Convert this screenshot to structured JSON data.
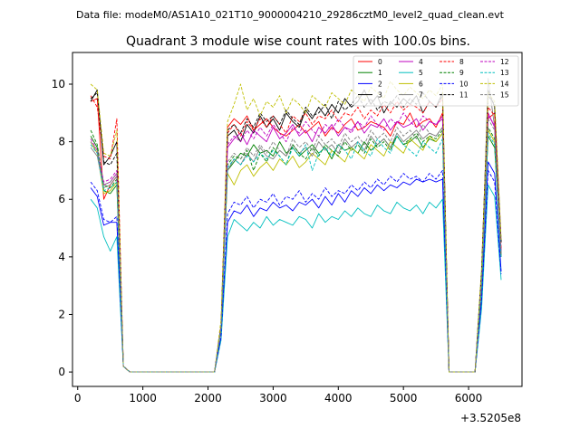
{
  "figure": {
    "suptitle": "Data file: modeM0/AS1A10_021T10_9000004210_29286cztM0_level2_quad_clean.evt",
    "offset_label": "+3.5205e8"
  },
  "chart_data": {
    "type": "line",
    "title": "Quadrant 3 module wise count rates with 100.0s bins.",
    "xlabel": "",
    "ylabel": "",
    "xlim": [
      -80,
      6820
    ],
    "ylim": [
      -0.5,
      11.1
    ],
    "x_ticks": [
      0,
      1000,
      2000,
      3000,
      4000,
      5000,
      6000
    ],
    "x_tick_labels": [
      "0",
      "1000",
      "2000",
      "3000",
      "4000",
      "5000",
      "6000"
    ],
    "y_ticks": [
      0,
      2,
      4,
      6,
      8,
      10
    ],
    "y_tick_labels": [
      "0",
      "2",
      "4",
      "6",
      "8",
      "10"
    ],
    "x_offset": 352050000,
    "grid": false,
    "legend": {
      "placement": "top-right",
      "columns": 4
    },
    "x": [
      200,
      300,
      400,
      500,
      600,
      700,
      800,
      900,
      1000,
      1100,
      1200,
      1300,
      1400,
      1500,
      1600,
      1700,
      1800,
      1900,
      2000,
      2100,
      2200,
      2300,
      2400,
      2500,
      2600,
      2700,
      2800,
      2900,
      3000,
      3100,
      3200,
      3300,
      3400,
      3500,
      3600,
      3700,
      3800,
      3900,
      4000,
      4100,
      4200,
      4300,
      4400,
      4500,
      4600,
      4700,
      4800,
      4900,
      5000,
      5100,
      5200,
      5300,
      5400,
      5500,
      5600,
      5700,
      5800,
      5900,
      6000,
      6100,
      6200,
      6300,
      6400,
      6500
    ],
    "series": [
      {
        "name": "0",
        "color": "#ff0000",
        "dash": "solid",
        "values": [
          9.4,
          9.5,
          6.0,
          6.5,
          6.8,
          0.2,
          0,
          0,
          0,
          0,
          0,
          0,
          0,
          0,
          0,
          0,
          0,
          0,
          0,
          0,
          1.5,
          8.5,
          8.8,
          8.6,
          8.9,
          8.4,
          8.6,
          8.8,
          8.5,
          8.3,
          8.2,
          8.4,
          8.6,
          8.3,
          8.5,
          8.7,
          8.2,
          8.5,
          8.3,
          8.6,
          8.8,
          8.4,
          8.5,
          8.7,
          8.6,
          8.5,
          8.2,
          8.7,
          8.6,
          9.0,
          8.5,
          8.7,
          8.8,
          8.5,
          9.0,
          0,
          0,
          0,
          0,
          0,
          3.0,
          8.8,
          9.0,
          4.0
        ]
      },
      {
        "name": "1",
        "color": "#008000",
        "dash": "solid",
        "values": [
          8.2,
          7.8,
          6.3,
          6.2,
          6.5,
          0.2,
          0,
          0,
          0,
          0,
          0,
          0,
          0,
          0,
          0,
          0,
          0,
          0,
          0,
          0,
          1.5,
          7.0,
          7.3,
          7.6,
          7.5,
          7.9,
          7.6,
          7.7,
          7.5,
          8.0,
          7.6,
          7.8,
          7.5,
          7.7,
          7.9,
          7.6,
          7.8,
          7.4,
          7.9,
          7.7,
          7.8,
          7.6,
          8.0,
          7.7,
          7.9,
          8.1,
          7.8,
          8.2,
          7.9,
          8.0,
          8.2,
          7.8,
          8.1,
          8.0,
          8.3,
          0,
          0,
          0,
          0,
          0,
          3.0,
          8.2,
          7.8,
          4.0
        ]
      },
      {
        "name": "2",
        "color": "#0000ff",
        "dash": "solid",
        "values": [
          6.4,
          6.1,
          5.1,
          5.2,
          5.2,
          0.2,
          0,
          0,
          0,
          0,
          0,
          0,
          0,
          0,
          0,
          0,
          0,
          0,
          0,
          0,
          1.2,
          5.2,
          5.6,
          5.5,
          5.8,
          5.4,
          5.7,
          5.6,
          5.9,
          5.7,
          5.8,
          5.6,
          5.9,
          5.8,
          6.0,
          5.7,
          6.1,
          5.8,
          6.2,
          5.9,
          6.3,
          6.1,
          6.4,
          6.2,
          6.5,
          6.3,
          6.5,
          6.4,
          6.6,
          6.5,
          6.7,
          6.6,
          6.7,
          6.6,
          6.7,
          0,
          0,
          0,
          0,
          0,
          2.5,
          7.3,
          6.9,
          3.5
        ]
      },
      {
        "name": "3",
        "color": "#000000",
        "dash": "solid",
        "values": [
          9.4,
          9.8,
          7.2,
          7.5,
          8.0,
          0.2,
          0,
          0,
          0,
          0,
          0,
          0,
          0,
          0,
          0,
          0,
          0,
          0,
          0,
          0,
          1.5,
          8.2,
          8.4,
          8.0,
          8.6,
          8.3,
          8.9,
          8.5,
          8.8,
          8.4,
          9.0,
          8.7,
          8.5,
          9.1,
          8.8,
          9.2,
          8.9,
          9.3,
          9.0,
          9.5,
          9.2,
          9.4,
          9.8,
          9.3,
          9.6,
          9.0,
          9.4,
          9.2,
          9.5,
          9.3,
          9.6,
          9.0,
          9.4,
          9.2,
          9.7,
          0,
          0,
          0,
          0,
          0,
          3.5,
          9.8,
          9.2,
          4.5
        ]
      },
      {
        "name": "4",
        "color": "#bf00bf",
        "dash": "solid",
        "values": [
          8.0,
          7.6,
          6.5,
          6.6,
          6.9,
          0.2,
          0,
          0,
          0,
          0,
          0,
          0,
          0,
          0,
          0,
          0,
          0,
          0,
          0,
          0,
          1.6,
          7.8,
          8.1,
          8.3,
          7.9,
          8.4,
          8.2,
          8.0,
          8.5,
          8.1,
          8.3,
          8.6,
          8.2,
          8.4,
          8.0,
          8.5,
          8.3,
          8.6,
          8.2,
          8.5,
          8.4,
          8.7,
          8.3,
          8.6,
          8.5,
          8.8,
          8.4,
          8.7,
          8.5,
          8.6,
          8.8,
          8.4,
          8.7,
          8.6,
          8.8,
          0,
          0,
          0,
          0,
          0,
          3.2,
          9.0,
          8.5,
          4.2
        ]
      },
      {
        "name": "5",
        "color": "#00bfbf",
        "dash": "solid",
        "values": [
          6.0,
          5.7,
          4.7,
          4.2,
          4.7,
          0.2,
          0,
          0,
          0,
          0,
          0,
          0,
          0,
          0,
          0,
          0,
          0,
          0,
          0,
          0,
          1.1,
          4.7,
          5.3,
          5.1,
          4.9,
          5.2,
          5.0,
          5.4,
          5.1,
          5.3,
          5.2,
          5.1,
          5.4,
          5.3,
          5.0,
          5.5,
          5.2,
          5.4,
          5.3,
          5.6,
          5.4,
          5.7,
          5.5,
          5.4,
          5.8,
          5.6,
          5.5,
          5.9,
          5.7,
          5.6,
          5.8,
          5.5,
          5.9,
          5.7,
          6.0,
          0,
          0,
          0,
          0,
          0,
          2.2,
          6.5,
          6.1,
          3.2
        ]
      },
      {
        "name": "6",
        "color": "#bfbf00",
        "dash": "solid",
        "values": [
          8.0,
          7.6,
          6.2,
          6.3,
          6.6,
          0.2,
          0,
          0,
          0,
          0,
          0,
          0,
          0,
          0,
          0,
          0,
          0,
          0,
          0,
          0,
          1.5,
          6.9,
          6.5,
          7.0,
          7.2,
          6.8,
          7.1,
          7.3,
          7.0,
          7.4,
          7.2,
          7.5,
          7.1,
          7.3,
          7.6,
          7.4,
          7.2,
          7.7,
          7.5,
          7.3,
          7.8,
          7.6,
          7.4,
          7.9,
          7.7,
          7.5,
          8.0,
          7.8,
          7.6,
          8.1,
          7.9,
          7.7,
          8.2,
          8.0,
          8.3,
          0,
          0,
          0,
          0,
          0,
          3.0,
          8.4,
          8.0,
          4.0
        ]
      },
      {
        "name": "7",
        "color": "#7f7f7f",
        "dash": "solid",
        "values": [
          7.8,
          7.5,
          6.4,
          6.5,
          6.8,
          0.2,
          0,
          0,
          0,
          0,
          0,
          0,
          0,
          0,
          0,
          0,
          0,
          0,
          0,
          0,
          1.5,
          7.0,
          7.4,
          7.2,
          7.6,
          7.3,
          7.8,
          7.5,
          7.4,
          7.7,
          7.5,
          7.9,
          7.6,
          7.8,
          7.5,
          8.0,
          7.7,
          7.9,
          7.6,
          8.1,
          7.8,
          8.0,
          7.7,
          8.2,
          7.9,
          8.1,
          7.8,
          8.3,
          8.0,
          8.2,
          8.4,
          8.1,
          8.3,
          8.2,
          8.5,
          0,
          0,
          0,
          0,
          0,
          3.0,
          10.2,
          8.5,
          4.1
        ]
      },
      {
        "name": "8",
        "color": "#ff0000",
        "dash": "dashed",
        "values": [
          9.6,
          9.2,
          7.5,
          7.4,
          8.8,
          0.2,
          0,
          0,
          0,
          0,
          0,
          0,
          0,
          0,
          0,
          0,
          0,
          0,
          0,
          0,
          1.6,
          8.3,
          8.6,
          8.2,
          8.7,
          8.4,
          8.8,
          8.5,
          8.9,
          8.6,
          8.3,
          8.9,
          8.7,
          9.0,
          8.6,
          8.9,
          8.8,
          9.1,
          8.7,
          9.0,
          8.9,
          9.2,
          8.8,
          9.1,
          8.9,
          9.3,
          9.0,
          9.4,
          9.1,
          9.3,
          9.2,
          9.0,
          9.4,
          9.2,
          9.5,
          0,
          0,
          0,
          0,
          0,
          3.3,
          9.2,
          8.9,
          4.3
        ]
      },
      {
        "name": "9",
        "color": "#008000",
        "dash": "dashed",
        "values": [
          8.4,
          7.9,
          6.5,
          6.4,
          6.7,
          0.2,
          0,
          0,
          0,
          0,
          0,
          0,
          0,
          0,
          0,
          0,
          0,
          0,
          0,
          0,
          1.5,
          7.2,
          7.5,
          7.4,
          7.7,
          7.0,
          7.6,
          7.3,
          7.8,
          7.5,
          7.2,
          7.9,
          7.6,
          7.4,
          7.8,
          7.5,
          7.9,
          7.7,
          7.5,
          8.0,
          7.7,
          7.9,
          7.6,
          8.1,
          7.8,
          8.0,
          7.7,
          8.2,
          7.9,
          8.1,
          8.3,
          8.0,
          8.2,
          8.1,
          8.4,
          0,
          0,
          0,
          0,
          0,
          3.0,
          8.5,
          8.1,
          4.0
        ]
      },
      {
        "name": "10",
        "color": "#0000ff",
        "dash": "dashed",
        "values": [
          6.6,
          6.3,
          5.3,
          5.2,
          5.4,
          0.2,
          0,
          0,
          0,
          0,
          0,
          0,
          0,
          0,
          0,
          0,
          0,
          0,
          0,
          0,
          1.2,
          5.5,
          5.9,
          5.8,
          6.1,
          5.7,
          6.0,
          5.9,
          6.2,
          5.8,
          6.1,
          6.0,
          6.3,
          5.9,
          6.2,
          6.0,
          6.4,
          6.1,
          6.3,
          6.2,
          6.5,
          6.3,
          6.6,
          6.4,
          6.7,
          6.5,
          6.8,
          6.6,
          6.9,
          6.7,
          6.8,
          6.6,
          6.9,
          6.7,
          7.0,
          0,
          0,
          0,
          0,
          0,
          2.5,
          7.0,
          6.6,
          3.4
        ]
      },
      {
        "name": "11",
        "color": "#000000",
        "dash": "dashed",
        "values": [
          9.5,
          9.7,
          7.3,
          7.2,
          7.6,
          0.2,
          0,
          0,
          0,
          0,
          0,
          0,
          0,
          0,
          0,
          0,
          0,
          0,
          0,
          0,
          1.6,
          8.4,
          8.6,
          8.3,
          8.8,
          8.5,
          9.0,
          8.7,
          8.9,
          8.6,
          9.1,
          8.8,
          8.6,
          9.2,
          8.9,
          9.0,
          9.3,
          8.8,
          9.4,
          9.1,
          9.3,
          9.6,
          9.2,
          9.5,
          9.1,
          9.4,
          9.3,
          9.6,
          9.2,
          9.5,
          9.3,
          9.7,
          9.4,
          9.2,
          9.6,
          0,
          0,
          0,
          0,
          0,
          3.5,
          9.6,
          9.3,
          4.5
        ]
      },
      {
        "name": "12",
        "color": "#bf00bf",
        "dash": "dashed",
        "values": [
          8.1,
          7.7,
          6.6,
          6.7,
          7.0,
          0.2,
          0,
          0,
          0,
          0,
          0,
          0,
          0,
          0,
          0,
          0,
          0,
          0,
          0,
          0,
          1.6,
          7.9,
          8.2,
          8.0,
          8.4,
          8.1,
          8.5,
          8.2,
          8.6,
          8.3,
          8.0,
          8.5,
          8.3,
          8.7,
          8.4,
          8.2,
          8.6,
          8.4,
          8.8,
          8.5,
          8.3,
          8.7,
          8.5,
          8.9,
          8.6,
          8.4,
          8.8,
          8.6,
          9.0,
          8.7,
          8.5,
          8.9,
          8.7,
          8.6,
          8.9,
          0,
          0,
          0,
          0,
          0,
          3.2,
          8.9,
          8.6,
          4.2
        ]
      },
      {
        "name": "13",
        "color": "#00bfbf",
        "dash": "dashed",
        "values": [
          7.9,
          7.6,
          6.3,
          6.4,
          6.6,
          0.2,
          0,
          0,
          0,
          0,
          0,
          0,
          0,
          0,
          0,
          0,
          0,
          0,
          0,
          0,
          1.5,
          7.1,
          7.4,
          7.2,
          7.5,
          7.3,
          7.6,
          7.4,
          7.7,
          7.5,
          7.2,
          7.8,
          7.5,
          7.9,
          7.0,
          7.6,
          7.8,
          7.5,
          7.9,
          7.7,
          7.4,
          8.0,
          7.7,
          7.5,
          8.1,
          7.8,
          7.6,
          8.2,
          7.9,
          7.7,
          7.5,
          8.0,
          7.8,
          7.6,
          8.1,
          0,
          0,
          0,
          0,
          0,
          3.0,
          8.3,
          7.9,
          4.0
        ]
      },
      {
        "name": "14",
        "color": "#bfbf00",
        "dash": "dashed",
        "values": [
          10.0,
          9.8,
          7.6,
          7.5,
          8.4,
          0.2,
          0,
          0,
          0,
          0,
          0,
          0,
          0,
          0,
          0,
          0,
          0,
          0,
          0,
          0,
          1.8,
          8.7,
          9.3,
          10.0,
          9.1,
          9.5,
          8.9,
          9.4,
          9.2,
          9.6,
          9.0,
          9.5,
          9.3,
          9.0,
          9.6,
          9.4,
          9.2,
          9.7,
          9.5,
          9.3,
          9.8,
          9.6,
          9.4,
          9.9,
          9.7,
          9.5,
          10.1,
          9.8,
          9.6,
          9.9,
          9.7,
          9.5,
          9.8,
          9.6,
          10.0,
          0,
          0,
          0,
          0,
          0,
          3.6,
          9.7,
          9.4,
          4.6
        ]
      },
      {
        "name": "15",
        "color": "#7f7f7f",
        "dash": "dashed",
        "values": [
          8.0,
          7.7,
          6.5,
          6.6,
          6.9,
          0.2,
          0,
          0,
          0,
          0,
          0,
          0,
          0,
          0,
          0,
          0,
          0,
          0,
          0,
          0,
          1.5,
          7.3,
          7.6,
          7.4,
          7.8,
          7.5,
          7.9,
          7.6,
          8.0,
          7.7,
          7.5,
          8.1,
          7.8,
          8.0,
          7.7,
          8.2,
          7.9,
          8.1,
          7.8,
          8.3,
          8.0,
          8.2,
          7.9,
          8.4,
          8.1,
          8.3,
          8.0,
          8.5,
          8.2,
          8.4,
          8.1,
          8.6,
          8.3,
          8.2,
          8.5,
          0,
          0,
          0,
          0,
          0,
          3.1,
          8.8,
          8.4,
          4.1
        ]
      }
    ]
  }
}
